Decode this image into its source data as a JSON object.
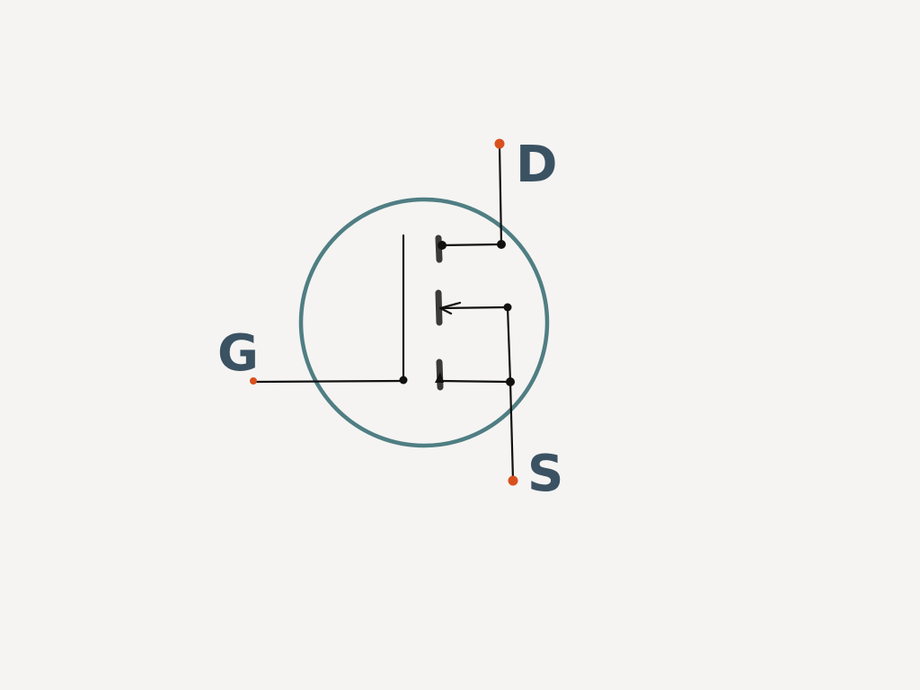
{
  "diagram": {
    "terminals": {
      "drain": {
        "label": "D"
      },
      "gate": {
        "label": "G"
      },
      "source": {
        "label": "S"
      }
    },
    "colors": {
      "background": "#f5f4f2",
      "envelope": "#4f7e83",
      "terminal_dot": "#d9501e",
      "label": "#3b5263",
      "wire": "#111111",
      "channel": "#3a3a3a"
    }
  }
}
